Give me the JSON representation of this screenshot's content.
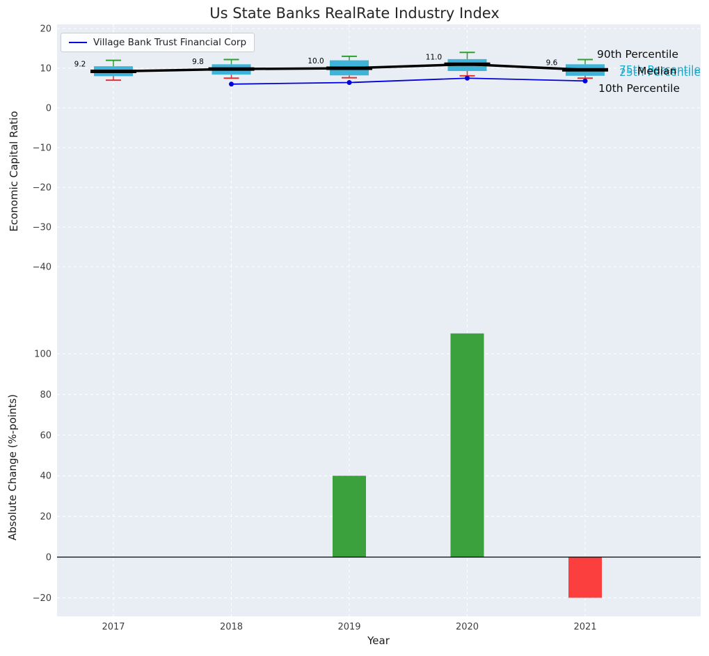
{
  "figure": {
    "title": "Us State Banks RealRate Industry Index",
    "background": "#ffffff",
    "plot_background": "#e9eef5",
    "grid_style": "white-dashed"
  },
  "chart_data": [
    {
      "type": "boxplot",
      "title": "Us State Banks RealRate Industry Index",
      "ylabel": "Economic Capital Ratio",
      "ylim": [
        -50,
        20
      ],
      "yticks": [
        20,
        10,
        0,
        -10,
        -20,
        -30,
        -40
      ],
      "categories": [
        "2017",
        "2018",
        "2019",
        "2020",
        "2021"
      ],
      "grid": "on",
      "legend": {
        "label": "Village Bank Trust Financial Corp",
        "position": "upper-left"
      },
      "boxes": [
        {
          "median": 9.2,
          "q1": 8.0,
          "q3": 10.5,
          "whisker_low": 7.0,
          "whisker_high": 12.0
        },
        {
          "median": 9.8,
          "q1": 8.4,
          "q3": 11.0,
          "whisker_low": 7.5,
          "whisker_high": 12.2
        },
        {
          "median": 10.0,
          "q1": 8.2,
          "q3": 12.0,
          "whisker_low": 7.6,
          "whisker_high": 13.0
        },
        {
          "median": 11.0,
          "q1": 9.3,
          "q3": 12.3,
          "whisker_low": 8.1,
          "whisker_high": 14.0
        },
        {
          "median": 9.6,
          "q1": 8.1,
          "q3": 11.0,
          "whisker_low": 7.5,
          "whisker_high": 12.2
        }
      ],
      "median_labels": [
        "9.2",
        "9.8",
        "10.0",
        "11.0",
        "9.6"
      ],
      "company_series": {
        "name": "Village Bank Trust Financial Corp",
        "x_indices": [
          1,
          2,
          3,
          4
        ],
        "values": [
          6.0,
          6.4,
          7.5,
          6.8
        ]
      },
      "annotations": {
        "p90": "90th Percentile",
        "p75": "75th Percentile",
        "median": "Median",
        "p25": "25th Percentile",
        "p10": "10th Percentile"
      },
      "colors": {
        "box": "#40b4d8",
        "median_line": "#000000",
        "whisker_high": "#2ca02c",
        "whisker_low": "#e03131",
        "company_line": "#0000dd",
        "percentile_text": "#1fa9c9"
      }
    },
    {
      "type": "bar",
      "ylabel": "Absolute Change (%-points)",
      "xlabel": "Year",
      "categories": [
        "2017",
        "2018",
        "2019",
        "2020",
        "2021"
      ],
      "values": [
        0,
        0,
        40,
        110,
        -20
      ],
      "yticks": [
        -20,
        0,
        20,
        40,
        60,
        80,
        100
      ],
      "ylim": [
        -29,
        117
      ],
      "colors": {
        "positive": "#3aa13c",
        "negative": "#fb3e3e",
        "zero_line": "#000000"
      }
    }
  ]
}
